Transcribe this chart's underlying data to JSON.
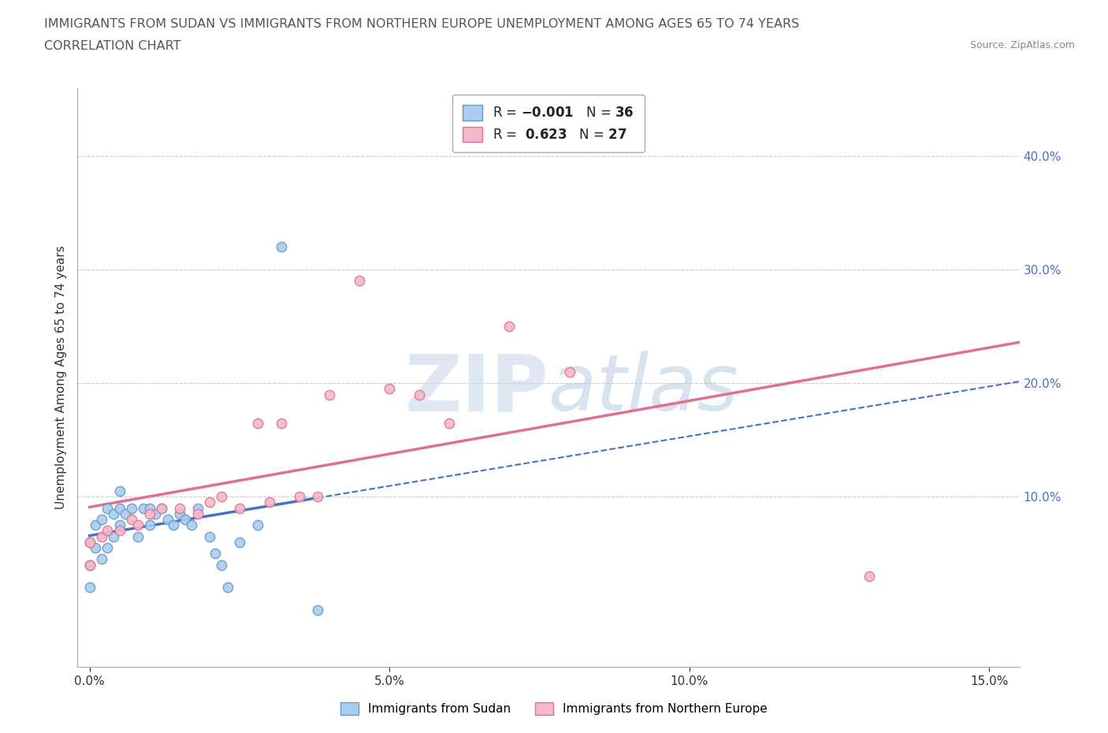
{
  "title_line1": "IMMIGRANTS FROM SUDAN VS IMMIGRANTS FROM NORTHERN EUROPE UNEMPLOYMENT AMONG AGES 65 TO 74 YEARS",
  "title_line2": "CORRELATION CHART",
  "source_text": "Source: ZipAtlas.com",
  "ylabel": "Unemployment Among Ages 65 to 74 years",
  "xlim": [
    -0.002,
    0.155
  ],
  "ylim": [
    -0.05,
    0.46
  ],
  "xticks": [
    0.0,
    0.05,
    0.1,
    0.15
  ],
  "xtick_labels": [
    "0.0%",
    "5.0%",
    "10.0%",
    "15.0%"
  ],
  "yticks_right": [
    0.1,
    0.2,
    0.3,
    0.4
  ],
  "ytick_labels_right": [
    "10.0%",
    "20.0%",
    "30.0%",
    "40.0%"
  ],
  "sudan_color": "#aaccee",
  "sudan_edge_color": "#6699cc",
  "north_europe_color": "#f4b8c8",
  "north_europe_edge_color": "#e07090",
  "sudan_line_color": "#4472c4",
  "north_europe_line_color": "#e07090",
  "grid_color": "#cccccc",
  "watermark_color": "#ccd8e8",
  "background_color": "#ffffff",
  "sudan_x": [
    0.0,
    0.0,
    0.0,
    0.001,
    0.001,
    0.002,
    0.002,
    0.003,
    0.003,
    0.004,
    0.004,
    0.005,
    0.005,
    0.005,
    0.006,
    0.007,
    0.008,
    0.009,
    0.01,
    0.01,
    0.011,
    0.012,
    0.013,
    0.014,
    0.015,
    0.016,
    0.017,
    0.018,
    0.02,
    0.021,
    0.022,
    0.023,
    0.025,
    0.028,
    0.032,
    0.038
  ],
  "sudan_y": [
    0.04,
    0.06,
    0.02,
    0.055,
    0.075,
    0.045,
    0.08,
    0.055,
    0.09,
    0.065,
    0.085,
    0.075,
    0.09,
    0.105,
    0.085,
    0.09,
    0.065,
    0.09,
    0.075,
    0.09,
    0.085,
    0.09,
    0.08,
    0.075,
    0.085,
    0.08,
    0.075,
    0.09,
    0.065,
    0.05,
    0.04,
    0.02,
    0.06,
    0.075,
    0.32,
    0.0
  ],
  "north_europe_x": [
    0.0,
    0.0,
    0.002,
    0.003,
    0.005,
    0.007,
    0.008,
    0.01,
    0.012,
    0.015,
    0.018,
    0.02,
    0.022,
    0.025,
    0.028,
    0.03,
    0.032,
    0.035,
    0.038,
    0.04,
    0.045,
    0.05,
    0.055,
    0.06,
    0.07,
    0.08,
    0.13
  ],
  "north_europe_y": [
    0.04,
    0.06,
    0.065,
    0.07,
    0.07,
    0.08,
    0.075,
    0.085,
    0.09,
    0.09,
    0.085,
    0.095,
    0.1,
    0.09,
    0.165,
    0.095,
    0.165,
    0.1,
    0.1,
    0.19,
    0.29,
    0.195,
    0.19,
    0.165,
    0.25,
    0.21,
    0.03
  ]
}
